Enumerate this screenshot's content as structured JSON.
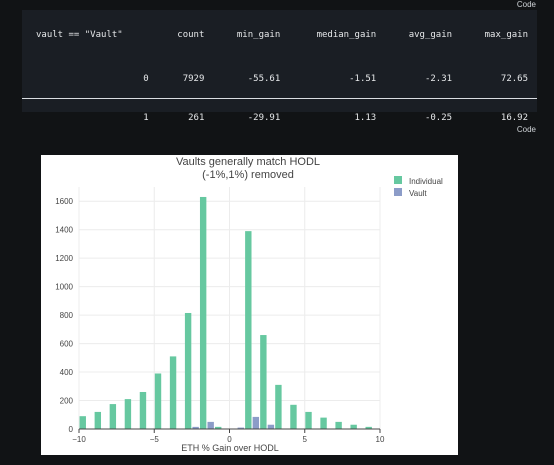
{
  "code_label": "Code",
  "table": {
    "headers": [
      "vault == \"Vault\"",
      "count",
      "min_gain",
      "median_gain",
      "avg_gain",
      "max_gain"
    ],
    "rows": [
      [
        "0",
        "7929",
        "-55.61",
        "-1.51",
        "-2.31",
        "72.65"
      ],
      [
        "1",
        "261",
        "-29.91",
        "1.13",
        "-0.25",
        "16.92"
      ]
    ]
  },
  "chart_data": {
    "type": "bar",
    "title": "Vaults generally match HODL",
    "subtitle": "(-1%,1%) removed",
    "xlabel": "ETH % Gain over HODL",
    "ylabel": "",
    "xlim": [
      -10,
      10
    ],
    "ylim": [
      0,
      1700
    ],
    "xticks": [
      "−10",
      "−5",
      "0",
      "5",
      "10"
    ],
    "yticks": [
      "0",
      "200",
      "400",
      "600",
      "800",
      "1000",
      "1200",
      "1400",
      "1600"
    ],
    "legend_position": "top-right",
    "colors": {
      "Individual": "#66c8a0",
      "Vault": "#8c9cc8"
    },
    "series": [
      {
        "name": "Individual",
        "x": [
          -9.75,
          -8.75,
          -7.75,
          -6.75,
          -5.75,
          -4.75,
          -3.75,
          -2.75,
          -1.75,
          -0.75,
          0.25,
          1.25,
          2.25,
          3.25,
          4.25,
          5.25,
          6.25,
          7.25,
          8.25,
          9.25
        ],
        "values": [
          90,
          120,
          175,
          210,
          260,
          390,
          510,
          815,
          1630,
          15,
          0,
          1390,
          660,
          310,
          170,
          120,
          80,
          50,
          30,
          15
        ]
      },
      {
        "name": "Vault",
        "x": [
          -2.25,
          -1.25,
          0.75,
          1.75,
          2.75
        ],
        "values": [
          15,
          50,
          10,
          85,
          30
        ]
      }
    ]
  }
}
